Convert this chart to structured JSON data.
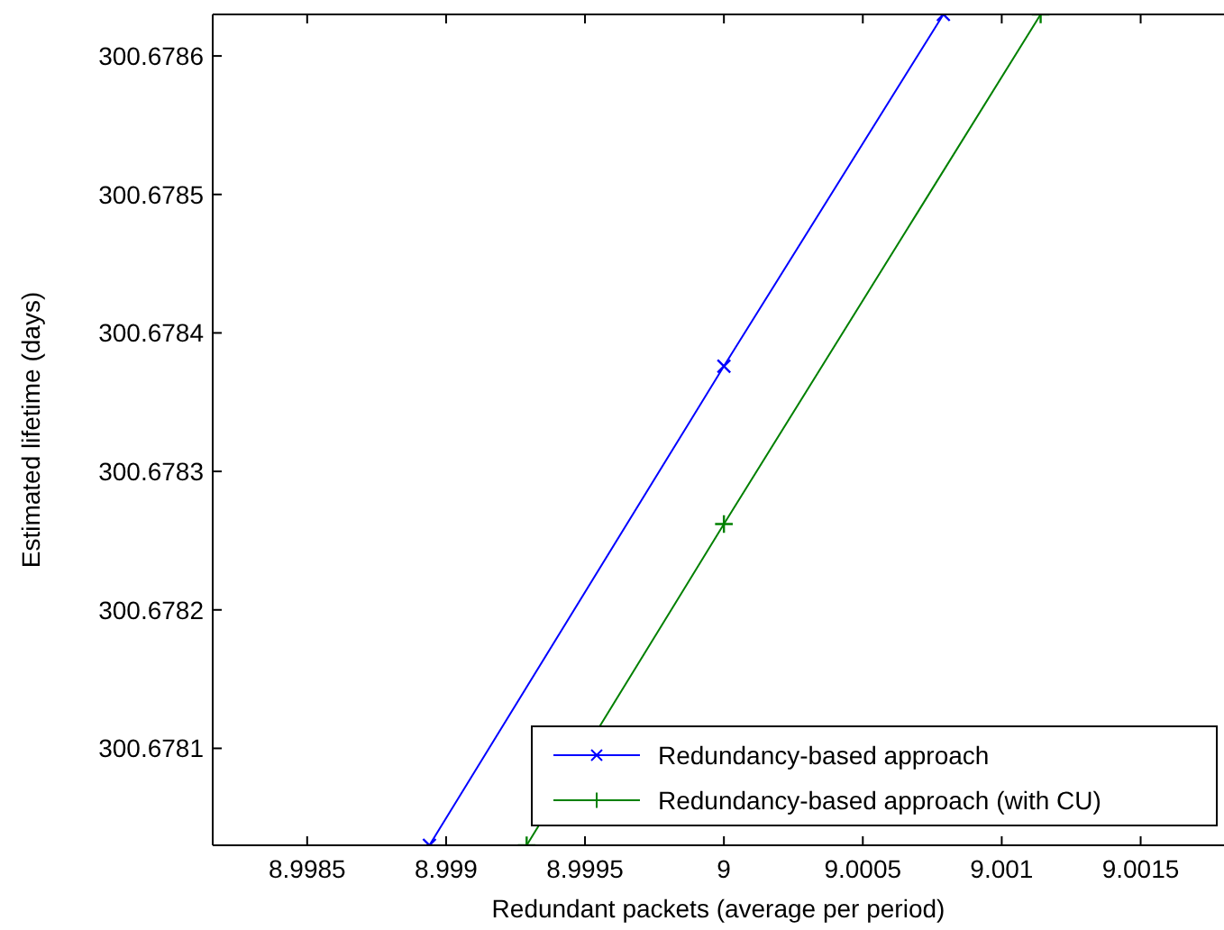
{
  "chart_data": {
    "type": "line",
    "xlabel": "Redundant packets (average per period)",
    "ylabel": "Estimated lifetime (days)",
    "xlim": [
      8.99816,
      9.0018
    ],
    "ylim": [
      300.67803,
      300.67863
    ],
    "xticks": [
      8.9985,
      8.999,
      8.9995,
      9,
      9.0005,
      9.001,
      9.0015
    ],
    "yticks": [
      300.6781,
      300.6782,
      300.6783,
      300.6784,
      300.6785,
      300.6786
    ],
    "grid": false,
    "legend": "bottom right",
    "series": [
      {
        "name": "Redundancy-based approach",
        "color": "#0000ff",
        "marker": "cross",
        "x": [
          8.99894,
          9,
          9.00079
        ],
        "values": [
          300.67803,
          300.678376,
          300.67863
        ]
      },
      {
        "name": "Redundancy-based approach (with CU)",
        "color": "#008000",
        "marker": "plus",
        "x": [
          8.99929,
          9,
          9.00114
        ],
        "values": [
          300.67803,
          300.678262,
          300.67863
        ]
      }
    ]
  }
}
